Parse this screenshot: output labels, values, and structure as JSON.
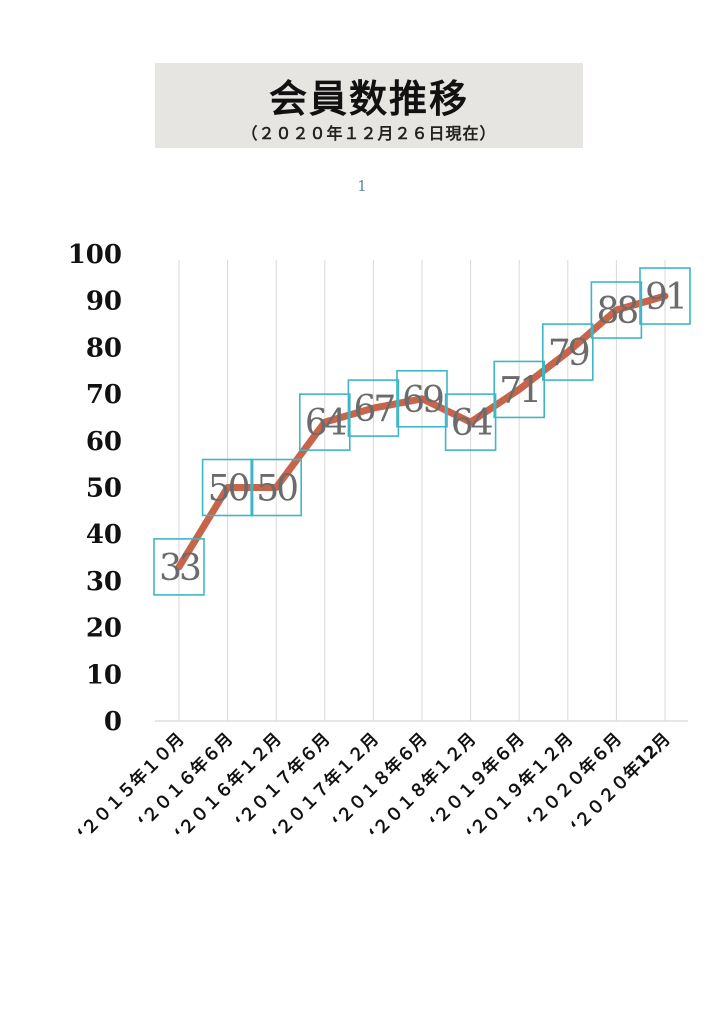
{
  "header": {
    "title": "会員数推移",
    "subtitle": "（２０２０年１２月２６日現在）"
  },
  "page_number": "1",
  "colors": {
    "line": "#c8644a",
    "label_box": "#3fb6c6",
    "grid": "#d8d8d8",
    "label_text": "#6b6b6b",
    "title_bg": "#e7e5e1"
  },
  "chart_data": {
    "type": "line",
    "title": "会員数推移",
    "subtitle": "（２０２０年１２月２６日現在）",
    "xlabel": "",
    "ylabel": "",
    "categories": [
      "‘２０１５年１０月",
      "‘２０１６年６月",
      "‘２０１６年１２月",
      "‘２０１７年６月",
      "‘２０１７年１２月",
      "‘２０１８年６月",
      "‘２０１８年１２月",
      "‘２０１９年６月",
      "‘２０１９年１２月",
      "‘２０２０年６月",
      "‘２０２０年12月"
    ],
    "series": [
      {
        "values": [
          33,
          50,
          50,
          64,
          67,
          69,
          64,
          71,
          79,
          88,
          91
        ]
      }
    ],
    "ylim": [
      0,
      100
    ],
    "yticks": [
      0,
      10,
      20,
      30,
      40,
      50,
      60,
      70,
      80,
      90,
      100
    ],
    "grid": "vertical",
    "data_labels": true,
    "legend": "none"
  }
}
